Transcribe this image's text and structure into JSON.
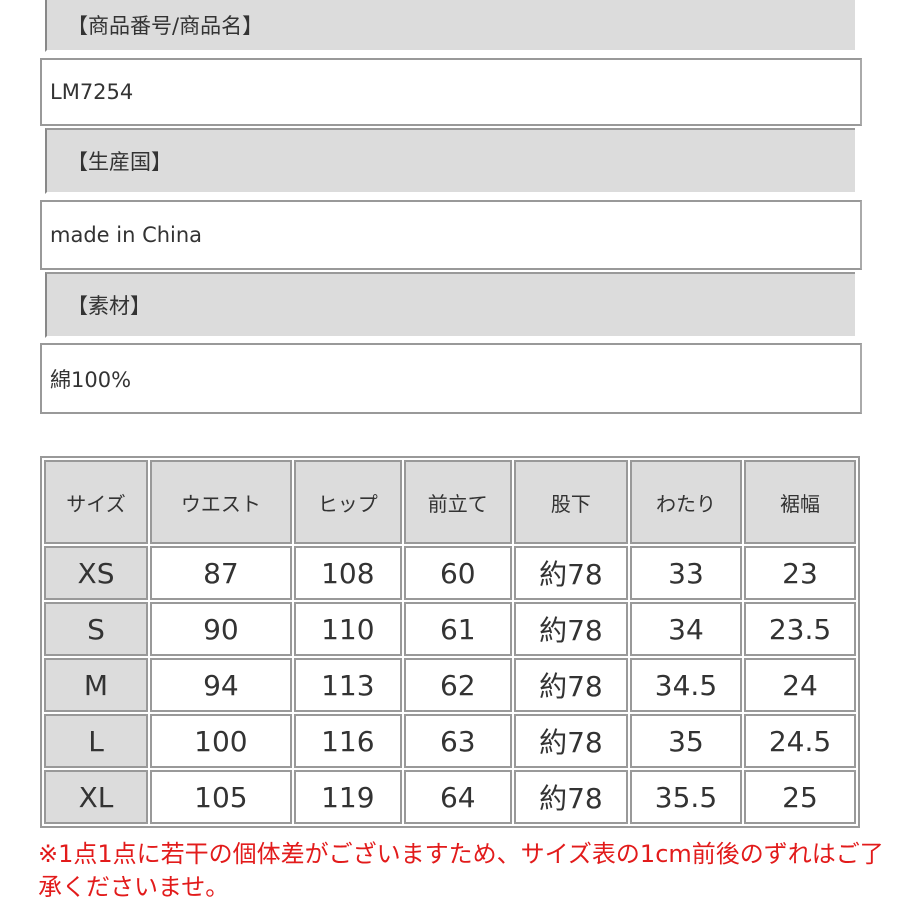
{
  "info": [
    {
      "label": "【商品番号/商品名】",
      "value": "LM7254"
    },
    {
      "label": "【生産国】",
      "value": "made in China"
    },
    {
      "label": "【素材】",
      "value": "綿100%"
    }
  ],
  "size_table": {
    "headers": [
      "サイズ",
      "ウエスト",
      "ヒップ",
      "前立て",
      "股下",
      "わたり",
      "裾幅"
    ],
    "rows": [
      [
        "XS",
        "87",
        "108",
        "60",
        "約78",
        "33",
        "23"
      ],
      [
        "S",
        "90",
        "110",
        "61",
        "約78",
        "34",
        "23.5"
      ],
      [
        "M",
        "94",
        "113",
        "62",
        "約78",
        "34.5",
        "24"
      ],
      [
        "L",
        "100",
        "116",
        "63",
        "約78",
        "35",
        "24.5"
      ],
      [
        "XL",
        "105",
        "119",
        "64",
        "約78",
        "35.5",
        "25"
      ]
    ]
  },
  "note": "※1点1点に若干の個体差がございますため、サイズ表の1cm前後のずれはご了承くださいませ。",
  "colors": {
    "note": "#e21b1b",
    "header_bg": "#dcdcdc"
  }
}
